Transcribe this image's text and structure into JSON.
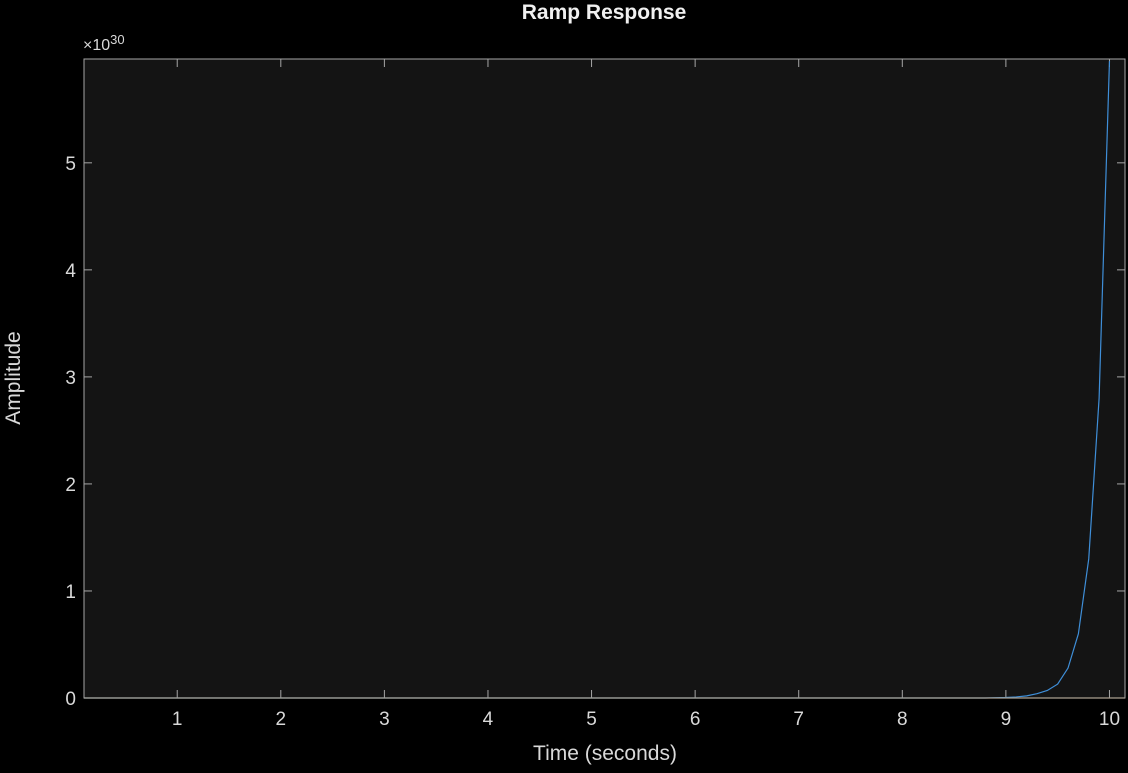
{
  "chart_data": {
    "type": "line",
    "title": "Ramp Response",
    "xlabel": "Time (seconds)",
    "ylabel": "Amplitude",
    "y_exponent_base": "×10",
    "y_exponent_power": "30",
    "xlim": [
      0.1,
      10.15
    ],
    "ylim": [
      0,
      5.97
    ],
    "x_ticks": [
      1,
      2,
      3,
      4,
      5,
      6,
      7,
      8,
      9,
      10
    ],
    "y_ticks": [
      0,
      1,
      2,
      3,
      4,
      5
    ],
    "grid": false,
    "colors": {
      "figure_bg": "#000000",
      "axes_bg": "#141414",
      "axis": "#a6a6a6",
      "text": "#d9d9d9",
      "series": "#3f8fd9",
      "baseline": "#c0863a"
    },
    "series": [
      {
        "x": [
          0.1,
          1,
          2,
          3,
          4,
          5,
          6,
          7,
          8,
          8.8,
          9.0,
          9.1,
          9.2,
          9.3,
          9.4,
          9.5,
          9.6,
          9.7,
          9.8,
          9.9,
          10.0
        ],
        "y": [
          0,
          0,
          0,
          0,
          0,
          0,
          0,
          0,
          0,
          0,
          0.005,
          0.01,
          0.02,
          0.04,
          0.07,
          0.13,
          0.28,
          0.6,
          1.3,
          2.8,
          5.95
        ]
      },
      {
        "x": [
          0.1,
          10.15
        ],
        "y": [
          0,
          0
        ]
      }
    ]
  }
}
